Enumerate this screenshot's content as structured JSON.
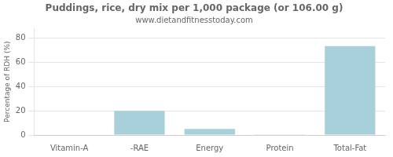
{
  "chart_data": {
    "type": "bar",
    "title": "Puddings, rice, dry mix per 1,000 package (or 106.00 g)",
    "subtitle": "www.dietandfitnesstoday.com",
    "categories": [
      "Vitamin-A",
      "-RAE",
      "Energy",
      "Protein",
      "Total-Fat"
    ],
    "values": [
      0.0,
      20.0,
      5.0,
      0.5,
      73.5
    ],
    "color": "#a8d0db",
    "ylabel": "Percentage of RDH (%)",
    "ylim": [
      0,
      88
    ],
    "yticks": [
      0,
      20,
      40,
      60,
      80
    ],
    "grid": true
  }
}
